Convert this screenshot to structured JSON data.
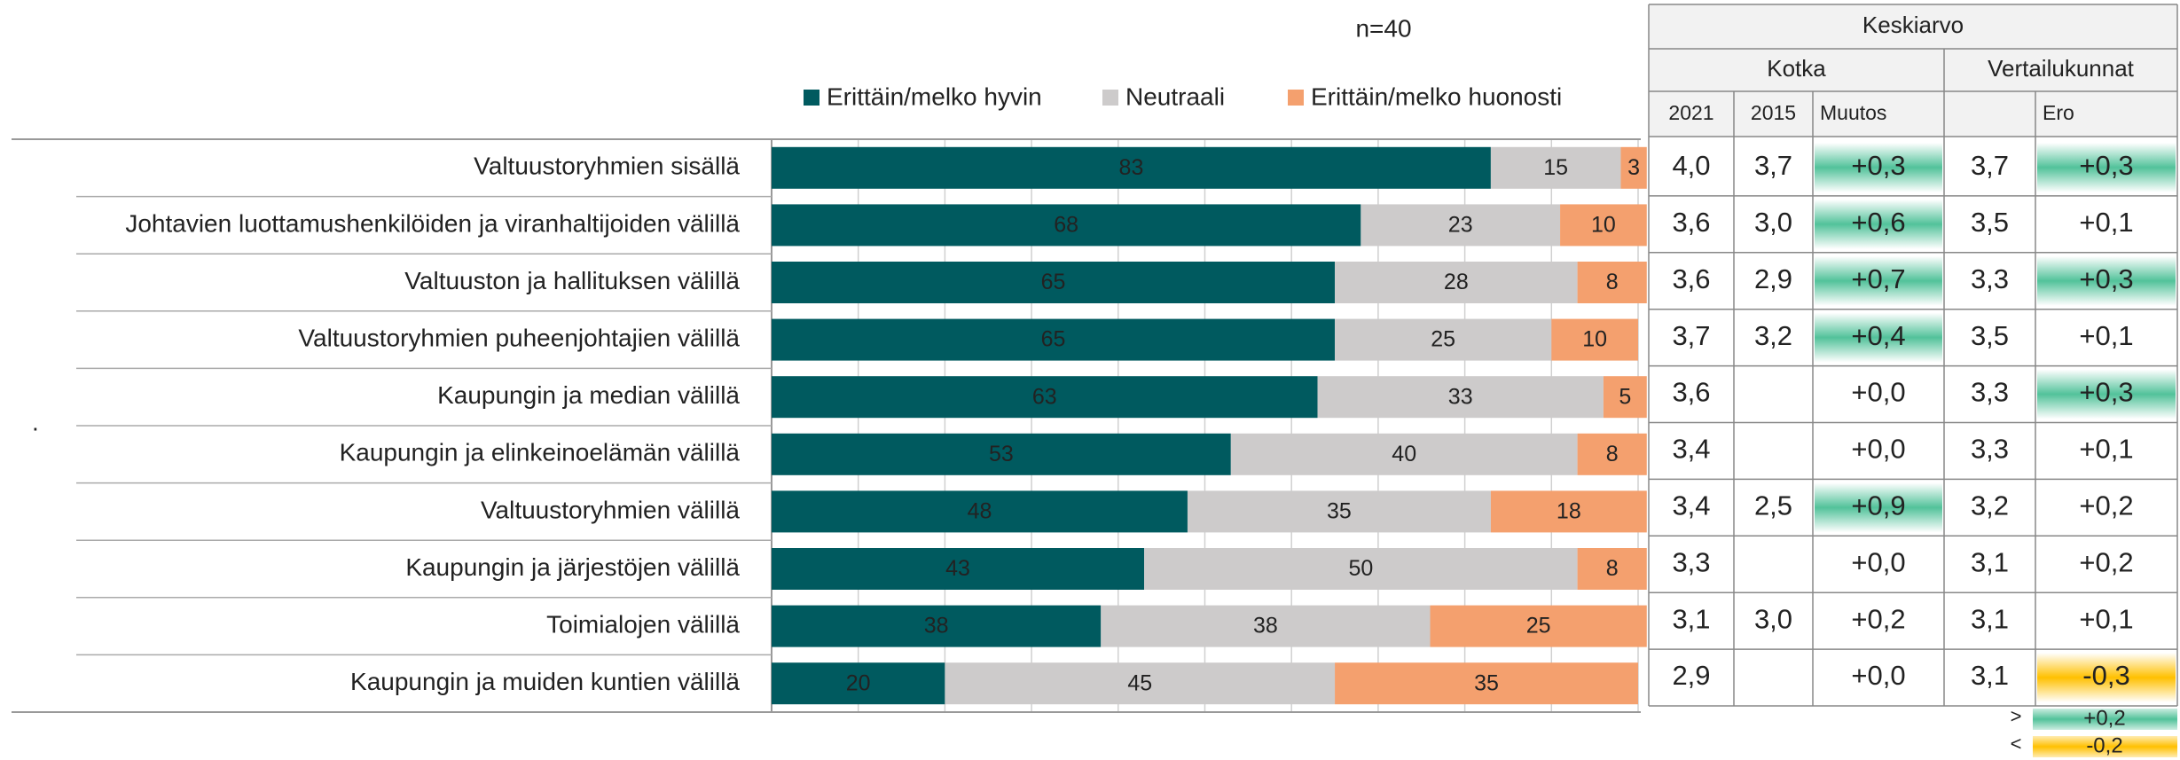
{
  "note": ".",
  "chart_data": {
    "type": "bar",
    "orientation": "horizontal",
    "stacked": true,
    "n_label": "n=40",
    "categories": [
      "Valtuustoryhmien sisällä",
      "Johtavien luottamushenkilöiden ja viranhaltijoiden välillä",
      "Valtuuston ja hallituksen välillä",
      "Valtuustoryhmien puheenjohtajien välillä",
      "Kaupungin ja median välillä",
      "Kaupungin ja elinkeinoelämän välillä",
      "Valtuustoryhmien välillä",
      "Kaupungin ja järjestöjen välillä",
      "Toimialojen välillä",
      "Kaupungin ja muiden kuntien välillä"
    ],
    "series": [
      {
        "name": "Erittäin/melko hyvin",
        "color": "#005a5f",
        "values": [
          83,
          68,
          65,
          65,
          63,
          53,
          48,
          43,
          38,
          20
        ]
      },
      {
        "name": "Neutraali",
        "color": "#cdcbcb",
        "values": [
          15,
          23,
          28,
          25,
          33,
          40,
          35,
          50,
          38,
          45
        ]
      },
      {
        "name": "Erittäin/melko huonosti",
        "color": "#f4a06e",
        "values": [
          3,
          10,
          8,
          10,
          5,
          8,
          18,
          8,
          25,
          35
        ]
      }
    ],
    "xlim": [
      0,
      100
    ],
    "xticks": [
      0,
      10,
      20,
      30,
      40,
      50,
      60,
      70,
      80,
      90,
      100
    ],
    "grid": true
  },
  "table": {
    "title": "Keskiarvo",
    "groups": [
      "Kotka",
      "Vertailukunnat"
    ],
    "columns": [
      "2021",
      "2015",
      "Muutos",
      null,
      "Ero"
    ],
    "rows": [
      [
        "4,0",
        "3,7",
        "+0,3",
        "3,7",
        "+0,3"
      ],
      [
        "3,6",
        "3,0",
        "+0,6",
        "3,5",
        "+0,1"
      ],
      [
        "3,6",
        "2,9",
        "+0,7",
        "3,3",
        "+0,3"
      ],
      [
        "3,7",
        "3,2",
        "+0,4",
        "3,5",
        "+0,1"
      ],
      [
        "3,6",
        null,
        "+0,0",
        "3,3",
        "+0,3"
      ],
      [
        "3,4",
        null,
        "+0,0",
        "3,3",
        "+0,1"
      ],
      [
        "3,4",
        "2,5",
        "+0,9",
        "3,2",
        "+0,2"
      ],
      [
        "3,3",
        null,
        "+0,0",
        "3,1",
        "+0,2"
      ],
      [
        "3,1",
        "3,0",
        "+0,2",
        "3,1",
        "+0,1"
      ],
      [
        "2,9",
        null,
        "+0,0",
        "3,1",
        "-0,3"
      ]
    ],
    "highlights": [
      [
        null,
        null,
        "#52c29a",
        null,
        "#52c29a"
      ],
      [
        null,
        null,
        "#52c29a",
        null,
        null
      ],
      [
        null,
        null,
        "#52c29a",
        null,
        "#52c29a"
      ],
      [
        null,
        null,
        "#52c29a",
        null,
        null
      ],
      [
        null,
        null,
        null,
        null,
        "#52c29a"
      ],
      [
        null,
        null,
        null,
        null,
        null
      ],
      [
        null,
        null,
        "#52c29a",
        null,
        null
      ],
      [
        null,
        null,
        null,
        null,
        null
      ],
      [
        null,
        null,
        null,
        null,
        null
      ],
      [
        null,
        null,
        null,
        null,
        "#ffc000"
      ]
    ],
    "legend": [
      {
        "symbol": ">",
        "label": "+0,2",
        "color": "#52c29a"
      },
      {
        "symbol": "<",
        "label": "-0,2",
        "color": "#ffc000"
      }
    ]
  }
}
